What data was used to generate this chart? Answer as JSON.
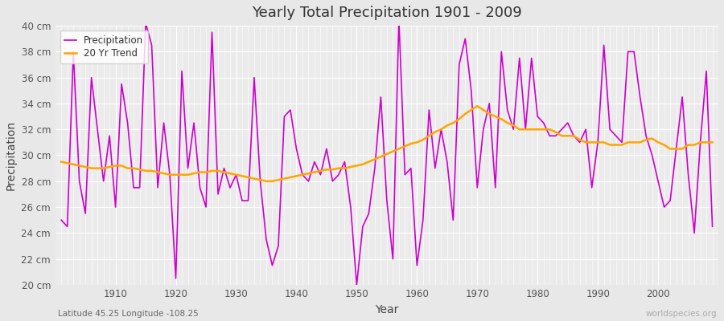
{
  "title": "Yearly Total Precipitation 1901 - 2009",
  "xlabel": "Year",
  "ylabel": "Precipitation",
  "subtitle": "Latitude 45.25 Longitude -108.25",
  "watermark": "worldspecies.org",
  "ylim": [
    20,
    40
  ],
  "ytick_labels": [
    "20 cm",
    "22 cm",
    "24 cm",
    "26 cm",
    "28 cm",
    "30 cm",
    "32 cm",
    "34 cm",
    "36 cm",
    "38 cm",
    "40 cm"
  ],
  "ytick_values": [
    20,
    22,
    24,
    26,
    28,
    30,
    32,
    34,
    36,
    38,
    40
  ],
  "precip_color": "#cc00cc",
  "trend_color": "#ffa500",
  "bg_color": "#e8e8e8",
  "plot_bg_color": "#ebebeb",
  "grid_color": "#ffffff",
  "years": [
    1901,
    1902,
    1903,
    1904,
    1905,
    1906,
    1907,
    1908,
    1909,
    1910,
    1911,
    1912,
    1913,
    1914,
    1915,
    1916,
    1917,
    1918,
    1919,
    1920,
    1921,
    1922,
    1923,
    1924,
    1925,
    1926,
    1927,
    1928,
    1929,
    1930,
    1931,
    1932,
    1933,
    1934,
    1935,
    1936,
    1937,
    1938,
    1939,
    1940,
    1941,
    1942,
    1943,
    1944,
    1945,
    1946,
    1947,
    1948,
    1949,
    1950,
    1951,
    1952,
    1953,
    1954,
    1955,
    1956,
    1957,
    1958,
    1959,
    1960,
    1961,
    1962,
    1963,
    1964,
    1965,
    1966,
    1967,
    1968,
    1969,
    1970,
    1971,
    1972,
    1973,
    1974,
    1975,
    1976,
    1977,
    1978,
    1979,
    1980,
    1981,
    1982,
    1983,
    1984,
    1985,
    1986,
    1987,
    1988,
    1989,
    1990,
    1991,
    1992,
    1993,
    1994,
    1995,
    1996,
    1997,
    1998,
    1999,
    2000,
    2001,
    2002,
    2003,
    2004,
    2005,
    2006,
    2007,
    2008,
    2009
  ],
  "precip": [
    25.0,
    24.5,
    38.0,
    28.0,
    25.5,
    36.0,
    32.0,
    28.0,
    31.5,
    26.0,
    35.5,
    32.5,
    27.5,
    27.5,
    40.2,
    38.5,
    27.5,
    32.5,
    28.5,
    20.5,
    36.5,
    29.0,
    32.5,
    27.5,
    26.0,
    39.5,
    27.0,
    29.0,
    27.5,
    28.5,
    26.5,
    26.5,
    36.0,
    28.0,
    23.5,
    21.5,
    23.0,
    33.0,
    33.5,
    30.5,
    28.5,
    28.0,
    29.5,
    28.5,
    30.5,
    28.0,
    28.5,
    29.5,
    26.0,
    20.0,
    24.5,
    25.5,
    29.0,
    34.5,
    26.5,
    22.0,
    40.5,
    28.5,
    29.0,
    21.5,
    25.0,
    33.5,
    29.0,
    32.0,
    29.5,
    25.0,
    37.0,
    39.0,
    35.0,
    27.5,
    32.0,
    34.0,
    27.5,
    38.0,
    33.5,
    32.0,
    37.5,
    32.0,
    37.5,
    33.0,
    32.5,
    31.5,
    31.5,
    32.0,
    32.5,
    31.5,
    31.0,
    32.0,
    27.5,
    31.0,
    38.5,
    32.0,
    31.5,
    31.0,
    38.0,
    38.0,
    34.5,
    31.5,
    30.0,
    28.0,
    26.0,
    26.5,
    30.5,
    34.5,
    28.5,
    24.0,
    31.0,
    36.5,
    24.5
  ],
  "trend": [
    29.5,
    29.4,
    29.3,
    29.2,
    29.1,
    29.0,
    29.0,
    29.0,
    29.1,
    29.2,
    29.2,
    29.0,
    29.0,
    28.9,
    28.8,
    28.8,
    28.7,
    28.6,
    28.5,
    28.5,
    28.5,
    28.5,
    28.6,
    28.7,
    28.7,
    28.8,
    28.8,
    28.7,
    28.6,
    28.5,
    28.4,
    28.3,
    28.2,
    28.1,
    28.0,
    28.0,
    28.1,
    28.2,
    28.3,
    28.4,
    28.5,
    28.6,
    28.7,
    28.8,
    28.9,
    28.9,
    29.0,
    29.0,
    29.1,
    29.2,
    29.3,
    29.5,
    29.7,
    29.9,
    30.1,
    30.3,
    30.5,
    30.7,
    30.9,
    31.0,
    31.2,
    31.5,
    31.8,
    32.0,
    32.3,
    32.5,
    32.8,
    33.2,
    33.5,
    33.8,
    33.5,
    33.2,
    33.0,
    32.8,
    32.5,
    32.3,
    32.0,
    32.0,
    32.0,
    32.0,
    32.0,
    32.0,
    31.8,
    31.5,
    31.5,
    31.5,
    31.2,
    31.0,
    31.0,
    31.0,
    31.0,
    30.8,
    30.8,
    30.8,
    31.0,
    31.0,
    31.0,
    31.2,
    31.3,
    31.0,
    30.8,
    30.5,
    30.5,
    30.5,
    30.8,
    30.8,
    31.0,
    31.0,
    31.0
  ]
}
